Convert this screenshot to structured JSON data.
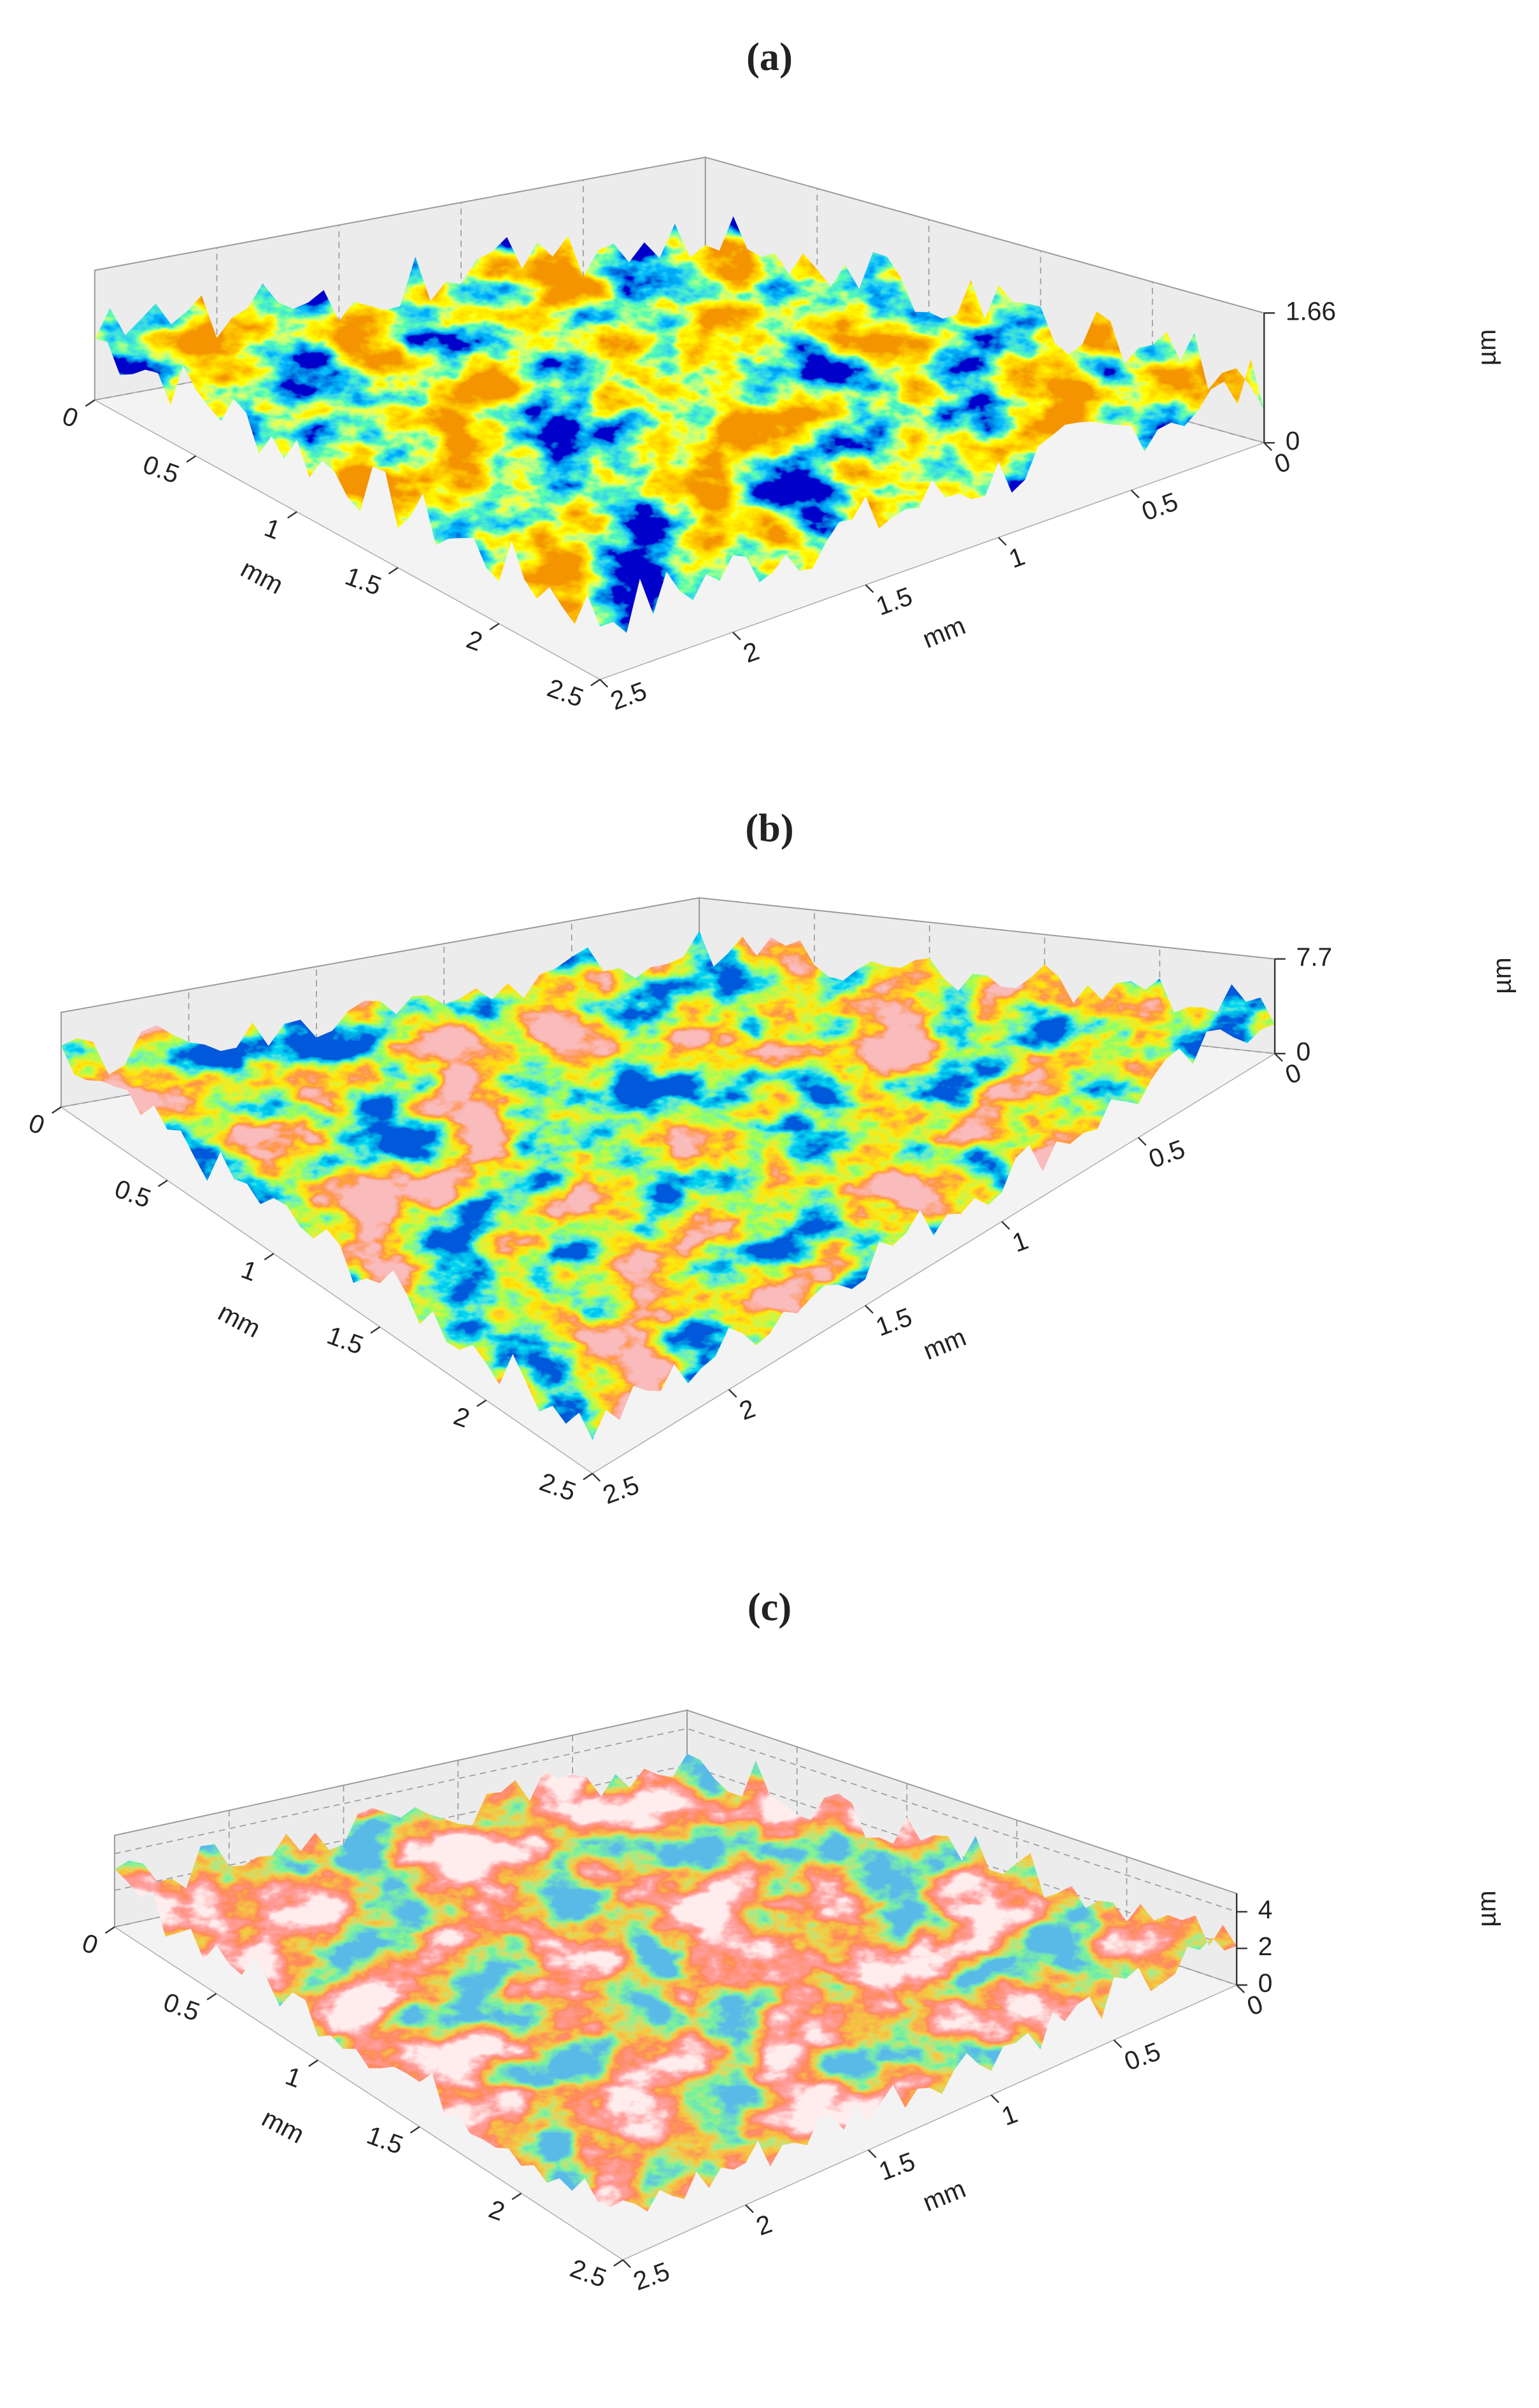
{
  "chart_data": [
    {
      "type": "surface3d",
      "title": "(a)",
      "xlabel": "mm",
      "ylabel": "mm",
      "zlabel": "µm",
      "xlim": [
        0,
        2.5
      ],
      "xticks": [
        0,
        0.5,
        1,
        1.5,
        2,
        2.5
      ],
      "ylim": [
        0,
        2.5
      ],
      "yticks": [
        0,
        0.5,
        1,
        1.5,
        2,
        2.5
      ],
      "zlim": [
        0,
        1.66
      ],
      "zticks": [
        0,
        1.66
      ]
    },
    {
      "type": "surface3d",
      "title": "(b)",
      "xlabel": "mm",
      "ylabel": "mm",
      "zlabel": "µm",
      "xlim": [
        0,
        2.5
      ],
      "xticks": [
        0,
        0.5,
        1,
        1.5,
        2,
        2.5
      ],
      "ylim": [
        0,
        2.5
      ],
      "yticks": [
        0,
        0.5,
        1,
        1.5,
        2,
        2.5
      ],
      "zlim": [
        0,
        7.7
      ],
      "zticks": [
        0,
        7.7
      ]
    },
    {
      "type": "surface3d",
      "title": "(c)",
      "xlabel": "mm",
      "ylabel": "mm",
      "zlabel": "µm",
      "xlim": [
        0,
        2.5
      ],
      "xticks": [
        0,
        0.5,
        1,
        1.5,
        2,
        2.5
      ],
      "ylim": [
        0,
        2.5
      ],
      "yticks": [
        0,
        0.5,
        1,
        1.5,
        2,
        2.5
      ],
      "zlim": [
        0,
        5
      ],
      "zticks": [
        0,
        2,
        4
      ]
    }
  ]
}
